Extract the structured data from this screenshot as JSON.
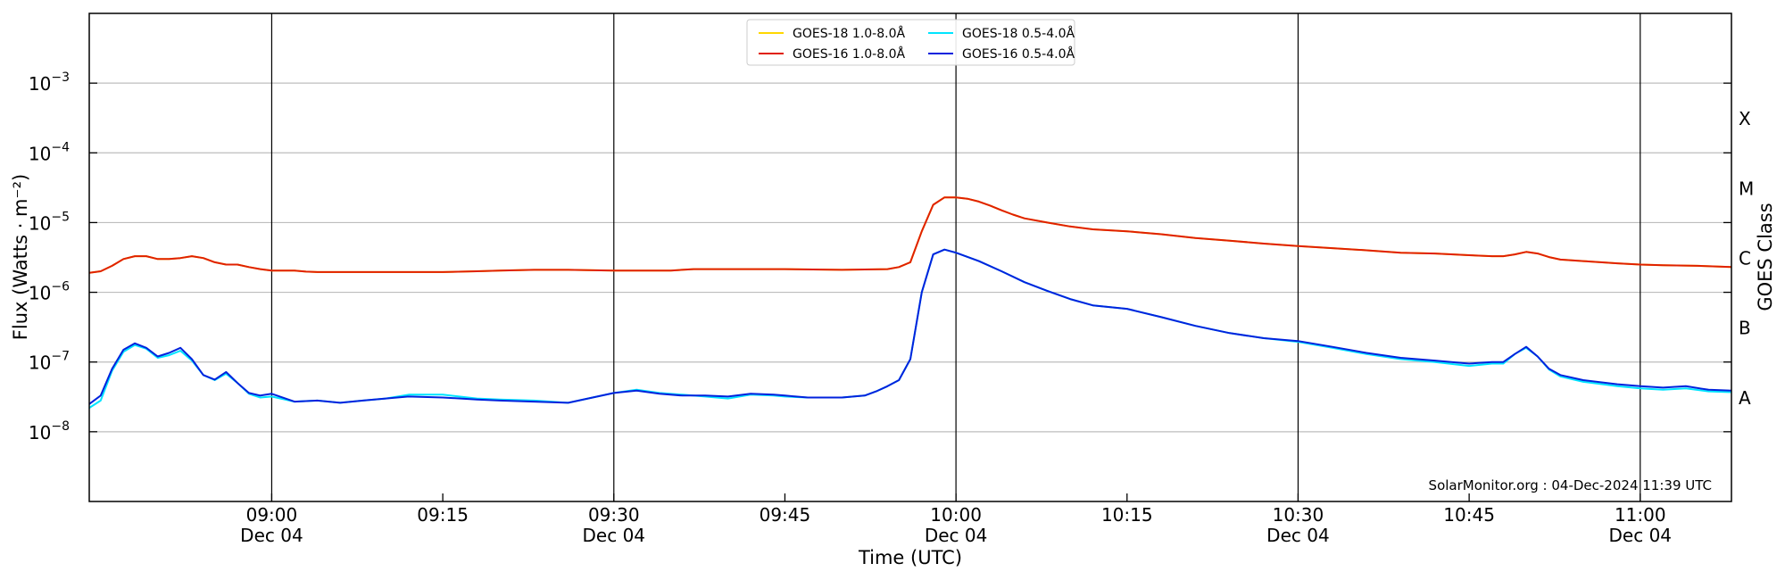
{
  "chart_data": {
    "type": "line",
    "ylabel": "Flux (Watts · m⁻²)",
    "xlabel": "Time (UTC)",
    "right_axis_label": "GOES Class",
    "credit": "SolarMonitor.org : 04-Dec-2024 11:39 UTC",
    "y_scale": "log",
    "ylim": [
      1e-09,
      0.01
    ],
    "xlim_minutes_utc": [
      "08:44",
      "11:08"
    ],
    "grid": "horizontal",
    "legend_placement": "top-center",
    "x_ticks": [
      {
        "time": "09:00",
        "label": "09:00",
        "date": "Dec 04"
      },
      {
        "time": "09:15",
        "label": "09:15",
        "date": ""
      },
      {
        "time": "09:30",
        "label": "09:30",
        "date": "Dec 04"
      },
      {
        "time": "09:45",
        "label": "09:45",
        "date": ""
      },
      {
        "time": "10:00",
        "label": "10:00",
        "date": "Dec 04"
      },
      {
        "time": "10:15",
        "label": "10:15",
        "date": ""
      },
      {
        "time": "10:30",
        "label": "10:30",
        "date": "Dec 04"
      },
      {
        "time": "10:45",
        "label": "10:45",
        "date": ""
      },
      {
        "time": "11:00",
        "label": "11:00",
        "date": "Dec 04"
      }
    ],
    "y_ticks": [
      {
        "value": 1e-08,
        "base": "10",
        "exp": "−8"
      },
      {
        "value": 1e-07,
        "base": "10",
        "exp": "−7"
      },
      {
        "value": 1e-06,
        "base": "10",
        "exp": "−6"
      },
      {
        "value": 1e-05,
        "base": "10",
        "exp": "−5"
      },
      {
        "value": 0.0001,
        "base": "10",
        "exp": "−4"
      },
      {
        "value": 0.001,
        "base": "10",
        "exp": "−3"
      }
    ],
    "goes_classes": [
      {
        "label": "A",
        "value": 3.16e-08
      },
      {
        "label": "B",
        "value": 3.16e-07
      },
      {
        "label": "C",
        "value": 3.16e-06
      },
      {
        "label": "M",
        "value": 3.16e-05
      },
      {
        "label": "X",
        "value": 0.000316
      }
    ],
    "series": [
      {
        "name": "GOES-18 1.0-8.0Å",
        "color": "#ffd700",
        "x": [
          "08:44",
          "08:45",
          "08:46",
          "08:47",
          "08:48",
          "08:49",
          "08:50",
          "08:51",
          "08:52",
          "08:53",
          "08:54",
          "08:55",
          "08:56",
          "08:57",
          "08:58",
          "08:59",
          "09:00",
          "09:01",
          "09:02",
          "09:03",
          "09:04",
          "09:05",
          "09:06",
          "09:07",
          "09:08",
          "09:09",
          "09:10",
          "09:12",
          "09:15",
          "09:18",
          "09:20",
          "09:23",
          "09:26",
          "09:30",
          "09:35",
          "09:37",
          "09:40",
          "09:45",
          "09:50",
          "09:54",
          "09:55",
          "09:56",
          "09:57",
          "09:58",
          "09:59",
          "10:00",
          "10:01",
          "10:02",
          "10:03",
          "10:04",
          "10:05",
          "10:06",
          "10:08",
          "10:10",
          "10:12",
          "10:15",
          "10:18",
          "10:21",
          "10:24",
          "10:27",
          "10:30",
          "10:33",
          "10:36",
          "10:39",
          "10:42",
          "10:45",
          "10:47",
          "10:48",
          "10:49",
          "10:50",
          "10:51",
          "10:52",
          "10:53",
          "10:55",
          "10:58",
          "11:00",
          "11:02",
          "11:05",
          "11:08"
        ],
        "y": [
          1.9e-06,
          2e-06,
          2.4e-06,
          3e-06,
          3.3e-06,
          3.3e-06,
          3e-06,
          3e-06,
          3.1e-06,
          3.3e-06,
          3.1e-06,
          2.7e-06,
          2.5e-06,
          2.5e-06,
          2.3e-06,
          2.15e-06,
          2.05e-06,
          2.05e-06,
          2.05e-06,
          1.98e-06,
          1.95e-06,
          1.95e-06,
          1.95e-06,
          1.95e-06,
          1.95e-06,
          1.95e-06,
          1.95e-06,
          1.95e-06,
          1.95e-06,
          2e-06,
          2.05e-06,
          2.1e-06,
          2.1e-06,
          2.05e-06,
          2.05e-06,
          2.15e-06,
          2.15e-06,
          2.15e-06,
          2.1e-06,
          2.15e-06,
          2.3e-06,
          2.7e-06,
          7.5e-06,
          1.8e-05,
          2.3e-05,
          2.3e-05,
          2.2e-05,
          2e-05,
          1.75e-05,
          1.5e-05,
          1.3e-05,
          1.15e-05,
          1e-05,
          8.8e-06,
          8e-06,
          7.5e-06,
          6.8e-06,
          6e-06,
          5.5e-06,
          5e-06,
          4.6e-06,
          4.3e-06,
          4e-06,
          3.7e-06,
          3.6e-06,
          3.4e-06,
          3.3e-06,
          3.3e-06,
          3.5e-06,
          3.8e-06,
          3.6e-06,
          3.2e-06,
          2.95e-06,
          2.8e-06,
          2.6e-06,
          2.5e-06,
          2.45e-06,
          2.4e-06,
          2.3e-06
        ]
      },
      {
        "name": "GOES-18 0.5-4.0Å",
        "color": "#00e5ff",
        "x": [
          "08:44",
          "08:45",
          "08:46",
          "08:47",
          "08:48",
          "08:49",
          "08:50",
          "08:51",
          "08:52",
          "08:53",
          "08:54",
          "08:55",
          "08:56",
          "08:57",
          "08:58",
          "08:59",
          "09:00",
          "09:02",
          "09:04",
          "09:06",
          "09:08",
          "09:10",
          "09:12",
          "09:15",
          "09:18",
          "09:20",
          "09:23",
          "09:26",
          "09:30",
          "09:32",
          "09:34",
          "09:36",
          "09:38",
          "09:40",
          "09:42",
          "09:44",
          "09:45",
          "09:47",
          "09:50",
          "09:52",
          "09:53",
          "09:54",
          "09:55",
          "09:56",
          "09:57",
          "09:58",
          "09:59",
          "10:00",
          "10:02",
          "10:04",
          "10:06",
          "10:08",
          "10:10",
          "10:12",
          "10:15",
          "10:18",
          "10:21",
          "10:24",
          "10:27",
          "10:30",
          "10:33",
          "10:36",
          "10:39",
          "10:42",
          "10:45",
          "10:47",
          "10:48",
          "10:49",
          "10:50",
          "10:51",
          "10:52",
          "10:53",
          "10:55",
          "10:58",
          "11:00",
          "11:02",
          "11:04",
          "11:06",
          "11:08"
        ],
        "y": [
          2.2e-08,
          2.8e-08,
          7.5e-08,
          1.4e-07,
          1.75e-07,
          1.55e-07,
          1.15e-07,
          1.25e-07,
          1.45e-07,
          1.05e-07,
          6.5e-08,
          5.5e-08,
          6.8e-08,
          5e-08,
          3.5e-08,
          3.1e-08,
          3.2e-08,
          2.7e-08,
          2.8e-08,
          2.6e-08,
          2.8e-08,
          3e-08,
          3.4e-08,
          3.4e-08,
          3e-08,
          2.9e-08,
          2.8e-08,
          2.6e-08,
          3.6e-08,
          4e-08,
          3.6e-08,
          3.4e-08,
          3.2e-08,
          3e-08,
          3.4e-08,
          3.3e-08,
          3.2e-08,
          3.1e-08,
          3.1e-08,
          3.3e-08,
          3.8e-08,
          4.5e-08,
          5.5e-08,
          1.1e-07,
          1e-06,
          3.5e-06,
          4.1e-06,
          3.7e-06,
          2.8e-06,
          2e-06,
          1.4e-06,
          1.05e-06,
          8e-07,
          6.5e-07,
          5.8e-07,
          4.4e-07,
          3.3e-07,
          2.6e-07,
          2.2e-07,
          1.95e-07,
          1.6e-07,
          1.3e-07,
          1.1e-07,
          1e-07,
          8.8e-08,
          9.5e-08,
          9.5e-08,
          1.3e-07,
          1.6e-07,
          1.2e-07,
          7.8e-08,
          6.2e-08,
          5.2e-08,
          4.5e-08,
          4.2e-08,
          4e-08,
          4.2e-08,
          3.8e-08,
          3.7e-08
        ]
      },
      {
        "name": "GOES-16 1.0-8.0Å",
        "color": "#e02000",
        "x": [
          "08:44",
          "08:45",
          "08:46",
          "08:47",
          "08:48",
          "08:49",
          "08:50",
          "08:51",
          "08:52",
          "08:53",
          "08:54",
          "08:55",
          "08:56",
          "08:57",
          "08:58",
          "08:59",
          "09:00",
          "09:01",
          "09:02",
          "09:03",
          "09:04",
          "09:05",
          "09:06",
          "09:07",
          "09:08",
          "09:09",
          "09:10",
          "09:12",
          "09:15",
          "09:18",
          "09:20",
          "09:23",
          "09:26",
          "09:30",
          "09:35",
          "09:37",
          "09:40",
          "09:45",
          "09:50",
          "09:54",
          "09:55",
          "09:56",
          "09:57",
          "09:58",
          "09:59",
          "10:00",
          "10:01",
          "10:02",
          "10:03",
          "10:04",
          "10:05",
          "10:06",
          "10:08",
          "10:10",
          "10:12",
          "10:15",
          "10:18",
          "10:21",
          "10:24",
          "10:27",
          "10:30",
          "10:33",
          "10:36",
          "10:39",
          "10:42",
          "10:45",
          "10:47",
          "10:48",
          "10:49",
          "10:50",
          "10:51",
          "10:52",
          "10:53",
          "10:55",
          "10:58",
          "11:00",
          "11:02",
          "11:05",
          "11:08"
        ],
        "y": [
          1.9e-06,
          2e-06,
          2.4e-06,
          3e-06,
          3.3e-06,
          3.3e-06,
          3e-06,
          3e-06,
          3.1e-06,
          3.3e-06,
          3.1e-06,
          2.7e-06,
          2.5e-06,
          2.5e-06,
          2.3e-06,
          2.15e-06,
          2.05e-06,
          2.05e-06,
          2.05e-06,
          1.98e-06,
          1.95e-06,
          1.95e-06,
          1.95e-06,
          1.95e-06,
          1.95e-06,
          1.95e-06,
          1.95e-06,
          1.95e-06,
          1.95e-06,
          2e-06,
          2.05e-06,
          2.1e-06,
          2.1e-06,
          2.05e-06,
          2.05e-06,
          2.15e-06,
          2.15e-06,
          2.15e-06,
          2.1e-06,
          2.15e-06,
          2.3e-06,
          2.7e-06,
          7.5e-06,
          1.8e-05,
          2.3e-05,
          2.3e-05,
          2.2e-05,
          2e-05,
          1.75e-05,
          1.5e-05,
          1.3e-05,
          1.15e-05,
          1e-05,
          8.8e-06,
          8e-06,
          7.5e-06,
          6.8e-06,
          6e-06,
          5.5e-06,
          5e-06,
          4.6e-06,
          4.3e-06,
          4e-06,
          3.7e-06,
          3.6e-06,
          3.4e-06,
          3.3e-06,
          3.3e-06,
          3.5e-06,
          3.8e-06,
          3.6e-06,
          3.2e-06,
          2.95e-06,
          2.8e-06,
          2.6e-06,
          2.5e-06,
          2.45e-06,
          2.4e-06,
          2.3e-06
        ]
      },
      {
        "name": "GOES-16 0.5-4.0Å",
        "color": "#0022dd",
        "x": [
          "08:44",
          "08:45",
          "08:46",
          "08:47",
          "08:48",
          "08:49",
          "08:50",
          "08:51",
          "08:52",
          "08:53",
          "08:54",
          "08:55",
          "08:56",
          "08:57",
          "08:58",
          "08:59",
          "09:00",
          "09:02",
          "09:04",
          "09:06",
          "09:08",
          "09:10",
          "09:12",
          "09:15",
          "09:18",
          "09:20",
          "09:23",
          "09:26",
          "09:30",
          "09:32",
          "09:34",
          "09:36",
          "09:38",
          "09:40",
          "09:42",
          "09:44",
          "09:45",
          "09:47",
          "09:50",
          "09:52",
          "09:53",
          "09:54",
          "09:55",
          "09:56",
          "09:57",
          "09:58",
          "09:59",
          "10:00",
          "10:02",
          "10:04",
          "10:06",
          "10:08",
          "10:10",
          "10:12",
          "10:15",
          "10:18",
          "10:21",
          "10:24",
          "10:27",
          "10:30",
          "10:33",
          "10:36",
          "10:39",
          "10:42",
          "10:45",
          "10:47",
          "10:48",
          "10:49",
          "10:50",
          "10:51",
          "10:52",
          "10:53",
          "10:55",
          "10:58",
          "11:00",
          "11:02",
          "11:04",
          "11:06",
          "11:08"
        ],
        "y": [
          2.5e-08,
          3.3e-08,
          8e-08,
          1.5e-07,
          1.85e-07,
          1.6e-07,
          1.2e-07,
          1.35e-07,
          1.6e-07,
          1.1e-07,
          6.5e-08,
          5.6e-08,
          7.2e-08,
          5e-08,
          3.6e-08,
          3.3e-08,
          3.5e-08,
          2.7e-08,
          2.8e-08,
          2.6e-08,
          2.8e-08,
          3e-08,
          3.2e-08,
          3.1e-08,
          2.9e-08,
          2.8e-08,
          2.7e-08,
          2.6e-08,
          3.6e-08,
          3.9e-08,
          3.5e-08,
          3.3e-08,
          3.3e-08,
          3.2e-08,
          3.5e-08,
          3.4e-08,
          3.3e-08,
          3.1e-08,
          3.1e-08,
          3.3e-08,
          3.8e-08,
          4.5e-08,
          5.5e-08,
          1.1e-07,
          1e-06,
          3.5e-06,
          4.1e-06,
          3.7e-06,
          2.8e-06,
          2e-06,
          1.4e-06,
          1.05e-06,
          8e-07,
          6.5e-07,
          5.8e-07,
          4.4e-07,
          3.3e-07,
          2.6e-07,
          2.2e-07,
          2e-07,
          1.65e-07,
          1.35e-07,
          1.15e-07,
          1.05e-07,
          9.5e-08,
          1e-07,
          1e-07,
          1.3e-07,
          1.65e-07,
          1.2e-07,
          8e-08,
          6.5e-08,
          5.5e-08,
          4.8e-08,
          4.5e-08,
          4.3e-08,
          4.5e-08,
          4e-08,
          3.9e-08
        ]
      }
    ]
  }
}
